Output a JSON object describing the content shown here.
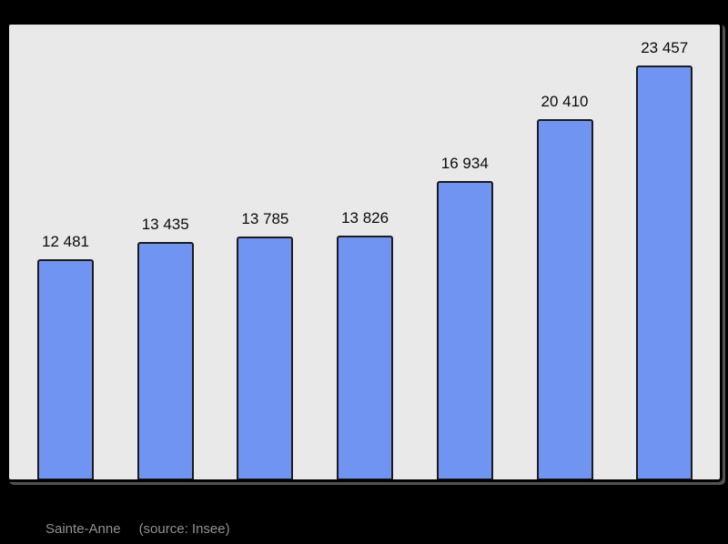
{
  "page": {
    "background_color": "#000000"
  },
  "caption": {
    "commune_name": "Sainte-Anne",
    "source_note": "(source: Insee)",
    "text_color": "#929292"
  },
  "chart_data": {
    "type": "bar",
    "title": "",
    "xlabel": "",
    "ylabel": "",
    "categories": [
      "",
      "",
      "",
      "",
      "",
      "",
      ""
    ],
    "values": [
      12481,
      13435,
      13785,
      13826,
      16934,
      20410,
      23457
    ],
    "value_labels": [
      "12 481",
      "13 435",
      "13 785",
      "13 826",
      "16 934",
      "20 410",
      "23 457"
    ],
    "ylim": [
      0,
      24000
    ],
    "grid": false,
    "legend": false,
    "bar_color": "#7094f2",
    "bar_border_color": "#1c1c1c",
    "plot_background_color": "#e9e9e9",
    "frame_border_color": "#000000",
    "value_label_color": "#0a0a0a"
  }
}
